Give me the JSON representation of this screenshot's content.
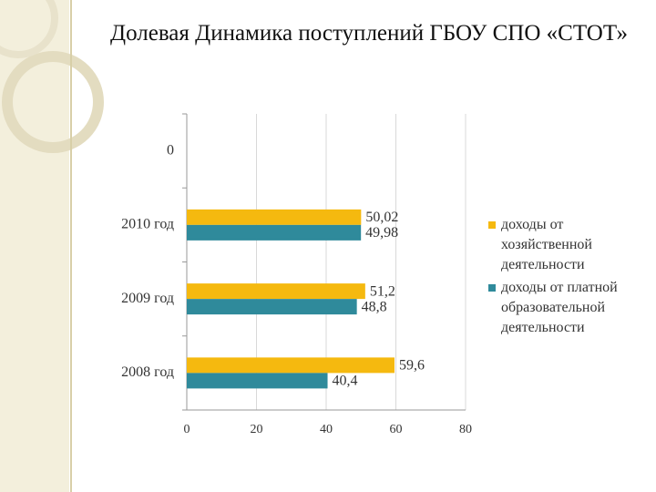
{
  "chart_data": {
    "type": "hbar",
    "title": "Долевая Динамика поступлений ГБОУ  СПО «СТОТ»",
    "categories": [
      "2008 год",
      "2009 год",
      "2010 год",
      "0"
    ],
    "series": [
      {
        "name": "доходы от хозяйственной деятельности",
        "color": "#f5b90f",
        "values": [
          59.6,
          51.2,
          50.02,
          null
        ],
        "value_labels": [
          "59,6",
          "51,2",
          "50,02",
          null
        ]
      },
      {
        "name": "доходы от платной образовательной деятельности",
        "color": "#2f8a9b",
        "values": [
          40.4,
          48.8,
          49.98,
          null
        ],
        "value_labels": [
          "40,4",
          "48,8",
          "49,98",
          null
        ]
      }
    ],
    "xlim": [
      0,
      80
    ],
    "xticks": [
      0,
      20,
      40,
      60,
      80
    ],
    "grid": true,
    "legend": "right"
  }
}
